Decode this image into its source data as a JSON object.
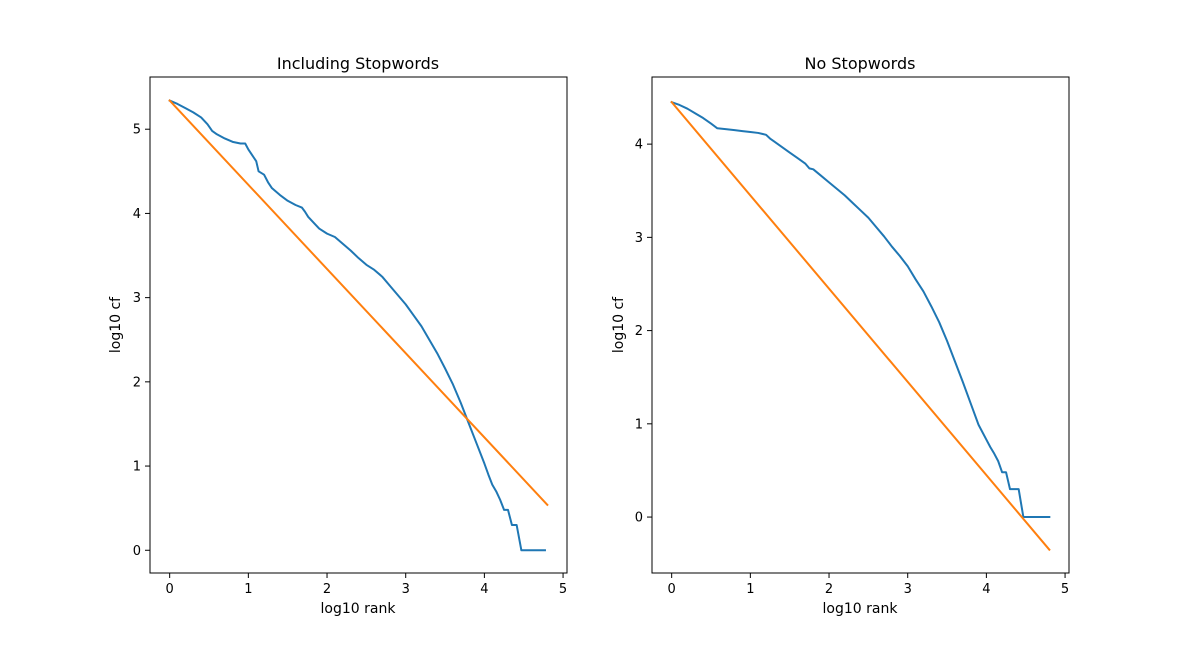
{
  "figure": {
    "background": "#ffffff"
  },
  "colors": {
    "series1": "#1f77b4",
    "series2": "#ff7f0e",
    "axes": "#000000"
  },
  "chart_data": [
    {
      "type": "line",
      "title": "Including Stopwords",
      "xlabel": "log10 rank",
      "ylabel": "log10 cf",
      "xlim": [
        -0.25,
        5.05
      ],
      "ylim": [
        -0.27,
        5.62
      ],
      "xticks": [
        0,
        1,
        2,
        3,
        4,
        5
      ],
      "yticks": [
        0,
        1,
        2,
        3,
        4,
        5
      ],
      "grid": false,
      "legend": "none",
      "series": [
        {
          "color": "#1f77b4",
          "x": [
            0,
            0.1,
            0.2,
            0.3,
            0.4,
            0.48,
            0.54,
            0.6,
            0.7,
            0.8,
            0.9,
            0.96,
            1.0,
            1.05,
            1.1,
            1.13,
            1.2,
            1.25,
            1.3,
            1.4,
            1.5,
            1.6,
            1.68,
            1.72,
            1.76,
            1.8,
            1.9,
            2.0,
            2.1,
            2.2,
            2.3,
            2.4,
            2.5,
            2.6,
            2.7,
            2.8,
            2.9,
            3.0,
            3.1,
            3.2,
            3.3,
            3.4,
            3.5,
            3.6,
            3.7,
            3.8,
            3.9,
            4.0,
            4.05,
            4.1,
            4.15,
            4.2,
            4.25,
            4.3,
            4.35,
            4.41,
            4.47,
            4.77
          ],
          "y": [
            5.34,
            5.3,
            5.25,
            5.2,
            5.14,
            5.06,
            4.98,
            4.94,
            4.89,
            4.85,
            4.83,
            4.83,
            4.76,
            4.69,
            4.62,
            4.5,
            4.46,
            4.37,
            4.3,
            4.22,
            4.15,
            4.1,
            4.07,
            4.02,
            3.96,
            3.92,
            3.82,
            3.76,
            3.72,
            3.64,
            3.56,
            3.47,
            3.39,
            3.33,
            3.25,
            3.14,
            3.03,
            2.92,
            2.79,
            2.66,
            2.5,
            2.34,
            2.16,
            1.97,
            1.75,
            1.51,
            1.27,
            1.03,
            0.9,
            0.78,
            0.7,
            0.6,
            0.48,
            0.48,
            0.3,
            0.3,
            0.0,
            0.0
          ],
          "step_mode": "integer-count plateaus at tail"
        },
        {
          "color": "#ff7f0e",
          "x": [
            0,
            4.8
          ],
          "y": [
            5.34,
            0.54
          ]
        }
      ]
    },
    {
      "type": "line",
      "title": "No Stopwords",
      "xlabel": "log10 rank",
      "ylabel": "log10 cf",
      "xlim": [
        -0.25,
        5.05
      ],
      "ylim": [
        -0.6,
        4.72
      ],
      "xticks": [
        0,
        1,
        2,
        3,
        4,
        5
      ],
      "yticks": [
        0,
        1,
        2,
        3,
        4
      ],
      "grid": false,
      "legend": "none",
      "series": [
        {
          "color": "#1f77b4",
          "x": [
            0,
            0.1,
            0.2,
            0.3,
            0.4,
            0.5,
            0.58,
            0.7,
            0.8,
            0.9,
            1.0,
            1.1,
            1.2,
            1.25,
            1.3,
            1.4,
            1.5,
            1.6,
            1.7,
            1.75,
            1.8,
            1.9,
            2.0,
            2.1,
            2.2,
            2.3,
            2.4,
            2.5,
            2.6,
            2.7,
            2.8,
            2.9,
            3.0,
            3.1,
            3.2,
            3.3,
            3.4,
            3.5,
            3.6,
            3.7,
            3.8,
            3.9,
            4.0,
            4.05,
            4.1,
            4.15,
            4.2,
            4.25,
            4.3,
            4.35,
            4.41,
            4.47,
            4.8
          ],
          "y": [
            4.45,
            4.42,
            4.38,
            4.33,
            4.28,
            4.22,
            4.17,
            4.16,
            4.15,
            4.14,
            4.13,
            4.12,
            4.1,
            4.06,
            4.03,
            3.97,
            3.91,
            3.85,
            3.79,
            3.74,
            3.73,
            3.66,
            3.59,
            3.52,
            3.45,
            3.37,
            3.29,
            3.21,
            3.11,
            3.01,
            2.9,
            2.8,
            2.69,
            2.55,
            2.42,
            2.26,
            2.09,
            1.89,
            1.67,
            1.45,
            1.22,
            0.99,
            0.83,
            0.75,
            0.68,
            0.6,
            0.48,
            0.48,
            0.3,
            0.3,
            0.3,
            0.0,
            0.0
          ],
          "step_mode": "integer-count plateaus at tail"
        },
        {
          "color": "#ff7f0e",
          "x": [
            0,
            4.8
          ],
          "y": [
            4.45,
            -0.35
          ]
        }
      ]
    }
  ]
}
